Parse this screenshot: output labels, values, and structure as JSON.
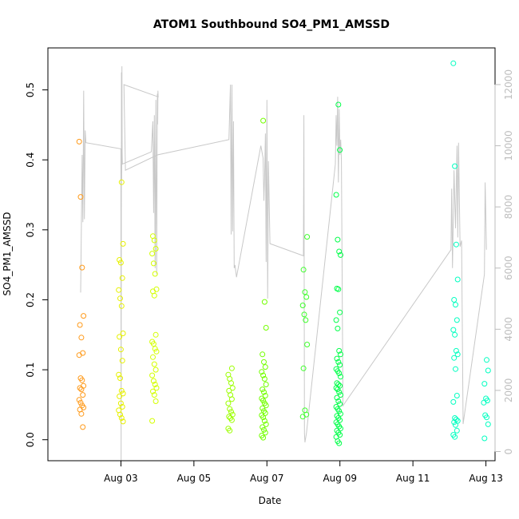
{
  "chart_data": {
    "type": "scatter",
    "title": "ATOM1 Southbound SO4_PM1_AMSSD",
    "xlabel": "Date",
    "ylabel": "SO4_PM1_AMSSD",
    "x_ticks": [
      "Aug 03",
      "Aug 05",
      "Aug 07",
      "Aug 09",
      "Aug 11",
      "Aug 13"
    ],
    "y_ticks": [
      "0.0",
      "0.1",
      "0.2",
      "0.3",
      "0.4",
      "0.5"
    ],
    "y2_ticks": [
      "0",
      "2000",
      "4000",
      "6000",
      "8000",
      "10000",
      "12000"
    ],
    "xlim": [
      "2023-08-01T00:00",
      "2023-08-13T06:00"
    ],
    "ylim": [
      -0.03,
      0.56
    ],
    "y2lim": [
      -300,
      13200
    ],
    "grid": false,
    "colors": {
      "g1": "#ff9a1a",
      "g2": "#e6f000",
      "g3": "#d4ff00",
      "g4": "#9cff00",
      "g5": "#73ff00",
      "g6": "#3dff2a",
      "g7": "#00ff49",
      "g8": "#00ffc0",
      "line": "#c8c8c8",
      "axis": "#000000",
      "axis2": "#bdbdbd"
    },
    "series": [
      {
        "color": "g1",
        "t": "2023-08-01T22:00",
        "values": [
          0.426,
          0.347,
          0.246,
          0.177,
          0.164,
          0.146,
          0.124,
          0.121,
          0.088,
          0.085,
          0.077,
          0.074,
          0.072,
          0.064,
          0.057,
          0.053,
          0.049,
          0.046,
          0.043,
          0.037,
          0.018
        ]
      },
      {
        "color": "g2",
        "t": "2023-08-03T00:00",
        "values": [
          0.368,
          0.28,
          0.257,
          0.253,
          0.231,
          0.214,
          0.202,
          0.191,
          0.152,
          0.147,
          0.129,
          0.113,
          0.093,
          0.088,
          0.07,
          0.066,
          0.062,
          0.052,
          0.047,
          0.042,
          0.036,
          0.031,
          0.026
        ]
      },
      {
        "color": "g3",
        "t": "2023-08-03T22:00",
        "values": [
          0.291,
          0.285,
          0.273,
          0.266,
          0.252,
          0.237,
          0.215,
          0.212,
          0.206,
          0.15,
          0.14,
          0.137,
          0.13,
          0.126,
          0.118,
          0.108,
          0.1,
          0.092,
          0.084,
          0.079,
          0.074,
          0.069,
          0.064,
          0.055,
          0.027
        ]
      },
      {
        "color": "g4",
        "t": "2023-08-06T00:00",
        "values": [
          0.102,
          0.093,
          0.087,
          0.081,
          0.074,
          0.07,
          0.064,
          0.058,
          0.052,
          0.044,
          0.04,
          0.036,
          0.033,
          0.031,
          0.028,
          0.016,
          0.013
        ]
      },
      {
        "color": "g5",
        "t": "2023-08-06T22:00",
        "values": [
          0.456,
          0.197,
          0.16,
          0.122,
          0.111,
          0.104,
          0.097,
          0.092,
          0.087,
          0.079,
          0.072,
          0.068,
          0.063,
          0.059,
          0.056,
          0.052,
          0.049,
          0.045,
          0.041,
          0.038,
          0.035,
          0.032,
          0.027,
          0.022,
          0.018,
          0.014,
          0.01,
          0.006,
          0.003
        ]
      },
      {
        "color": "g6",
        "t": "2023-08-08T01:00",
        "values": [
          0.29,
          0.243,
          0.211,
          0.204,
          0.192,
          0.179,
          0.171,
          0.136,
          0.102,
          0.042,
          0.036,
          0.033
        ]
      },
      {
        "color": "g7",
        "t": "2023-08-08T23:00",
        "values": [
          0.479,
          0.414,
          0.35,
          0.286,
          0.269,
          0.264,
          0.216,
          0.215,
          0.182,
          0.171,
          0.159,
          0.127,
          0.122,
          0.116,
          0.111,
          0.107,
          0.101,
          0.098,
          0.095,
          0.09,
          0.081,
          0.079,
          0.077,
          0.074,
          0.072,
          0.068,
          0.064,
          0.06,
          0.055,
          0.051,
          0.047,
          0.044,
          0.041,
          0.037,
          0.034,
          0.031,
          0.028,
          0.025,
          0.022,
          0.019,
          0.016,
          0.013,
          0.01,
          0.007,
          0.004,
          -0.002,
          -0.005
        ]
      },
      {
        "color": "g8",
        "t": "2023-08-12T04:00",
        "values": [
          0.538,
          0.391,
          0.279,
          0.229,
          0.2,
          0.193,
          0.171,
          0.157,
          0.15,
          0.127,
          0.122,
          0.117,
          0.101,
          0.063,
          0.054,
          0.031,
          0.029,
          0.027,
          0.025,
          0.021,
          0.013,
          0.007,
          0.004
        ]
      },
      {
        "color": "g8",
        "t": "2023-08-13T00:00",
        "values": [
          0.114,
          0.099,
          0.08,
          0.059,
          0.056,
          0.053,
          0.035,
          0.032,
          0.022,
          0.002
        ]
      }
    ],
    "secondary_line": {
      "axis": "right",
      "points": [
        [
          "2023-08-01T21:30",
          5200
        ],
        [
          "2023-08-01T22:30",
          9700
        ],
        [
          "2023-08-01T23:00",
          7500
        ],
        [
          "2023-08-01T23:30",
          11800
        ],
        [
          "2023-08-02T00:00",
          7600
        ],
        [
          "2023-08-02T00:30",
          10500
        ],
        [
          "2023-08-02T01:00",
          10100
        ],
        [
          "2023-08-03T00:00",
          9900
        ],
        [
          "2023-08-03T00:10",
          -500
        ],
        [
          "2023-08-03T00:20",
          12400
        ],
        [
          "2023-08-03T00:30",
          8900
        ],
        [
          "2023-08-03T00:40",
          12600
        ],
        [
          "2023-08-03T00:50",
          9800
        ],
        [
          "2023-08-03T01:00",
          9400
        ],
        [
          "2023-08-03T20:00",
          9800
        ],
        [
          "2023-08-03T21:00",
          10800
        ],
        [
          "2023-08-03T21:30",
          7800
        ],
        [
          "2023-08-03T22:00",
          11000
        ],
        [
          "2023-08-03T22:30",
          6000
        ],
        [
          "2023-08-03T23:00",
          11500
        ],
        [
          "2023-08-03T23:30",
          5800
        ],
        [
          "2023-08-04T00:00",
          11700
        ],
        [
          "2023-08-04T00:10",
          10700
        ],
        [
          "2023-08-04T00:20",
          11800
        ],
        [
          "2023-08-04T00:30",
          11600
        ],
        [
          "2023-08-03T02:00",
          12000
        ],
        [
          "2023-08-03T03:00",
          9200
        ],
        [
          "2023-08-04T00:00",
          9700
        ],
        [
          "2023-08-05T23:00",
          10200
        ],
        [
          "2023-08-06T00:00",
          12000
        ],
        [
          "2023-08-06T00:30",
          7100
        ],
        [
          "2023-08-06T01:00",
          12000
        ],
        [
          "2023-08-06T01:30",
          7200
        ],
        [
          "2023-08-06T02:00",
          10800
        ],
        [
          "2023-08-06T02:30",
          6000
        ],
        [
          "2023-08-06T03:00",
          6100
        ],
        [
          "2023-08-06T04:00",
          5700
        ],
        [
          "2023-08-06T20:00",
          10000
        ],
        [
          "2023-08-06T21:30",
          9600
        ],
        [
          "2023-08-06T22:00",
          8200
        ],
        [
          "2023-08-06T22:30",
          9000
        ],
        [
          "2023-08-06T23:00",
          10400
        ],
        [
          "2023-08-06T23:30",
          6200
        ],
        [
          "2023-08-07T00:00",
          11500
        ],
        [
          "2023-08-07T00:30",
          5000
        ],
        [
          "2023-08-07T01:00",
          9500
        ],
        [
          "2023-08-07T02:00",
          6800
        ],
        [
          "2023-08-08T00:00",
          6400
        ],
        [
          "2023-08-08T00:20",
          11000
        ],
        [
          "2023-08-08T00:40",
          600
        ],
        [
          "2023-08-08T01:00",
          300
        ],
        [
          "2023-08-08T02:00",
          600
        ],
        [
          "2023-08-08T21:00",
          9400
        ],
        [
          "2023-08-08T21:30",
          11000
        ],
        [
          "2023-08-08T22:00",
          10000
        ],
        [
          "2023-08-08T22:30",
          11600
        ],
        [
          "2023-08-08T23:00",
          8800
        ],
        [
          "2023-08-08T23:30",
          11200
        ],
        [
          "2023-08-09T00:00",
          9700
        ],
        [
          "2023-08-09T00:30",
          10200
        ],
        [
          "2023-08-09T01:00",
          9500
        ],
        [
          "2023-08-09T02:00",
          1500
        ],
        [
          "2023-08-12T01:00",
          6600
        ],
        [
          "2023-08-12T01:30",
          8600
        ],
        [
          "2023-08-12T02:00",
          6000
        ],
        [
          "2023-08-12T03:00",
          9200
        ],
        [
          "2023-08-12T04:00",
          7300
        ],
        [
          "2023-08-12T05:00",
          10000
        ],
        [
          "2023-08-12T05:30",
          7000
        ],
        [
          "2023-08-12T06:00",
          10100
        ],
        [
          "2023-08-12T07:00",
          6700
        ],
        [
          "2023-08-12T08:00",
          6900
        ],
        [
          "2023-08-12T09:00",
          900
        ],
        [
          "2023-08-12T23:00",
          5800
        ],
        [
          "2023-08-12T23:30",
          8800
        ],
        [
          "2023-08-13T00:00",
          7500
        ],
        [
          "2023-08-13T00:20",
          6600
        ]
      ]
    }
  }
}
